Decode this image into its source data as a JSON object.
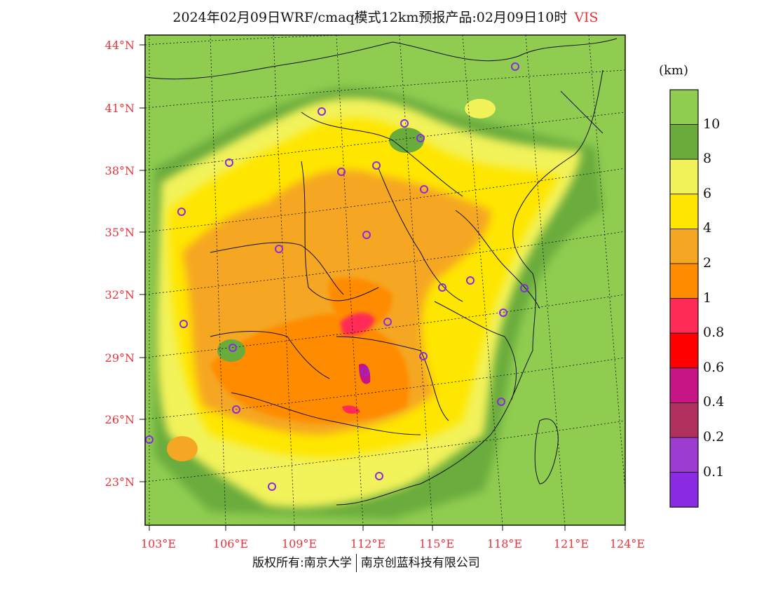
{
  "title": {
    "text": "2024年02月09日WRF/cmaq模式12km预报产品:02月09日10时",
    "variable": "VIS"
  },
  "legend": {
    "unit": "(km)",
    "colors": [
      "#8c8c46",
      "#8a2be2",
      "#9c3cd0",
      "#b03060",
      "#c71585",
      "#ff0000",
      "#ff2a55",
      "#ff8c00",
      "#f5a623",
      "#ffe600",
      "#f2f25a",
      "#6aac3c",
      "#8fcc50"
    ],
    "labels": [
      "10",
      "8",
      "6",
      "4",
      "2",
      "1",
      "0.8",
      "0.6",
      "0.4",
      "0.2",
      "0.1"
    ]
  },
  "axes": {
    "lon_labels": [
      "103°E",
      "106°E",
      "109°E",
      "112°E",
      "115°E",
      "118°E",
      "121°E",
      "124°E"
    ],
    "lat_labels": [
      "44°N",
      "41°N",
      "38°N",
      "35°N",
      "32°N",
      "29°N",
      "26°N",
      "23°N"
    ]
  },
  "footer": {
    "left": "版权所有:南京大学",
    "right": "南京创蓝科技有限公司"
  }
}
